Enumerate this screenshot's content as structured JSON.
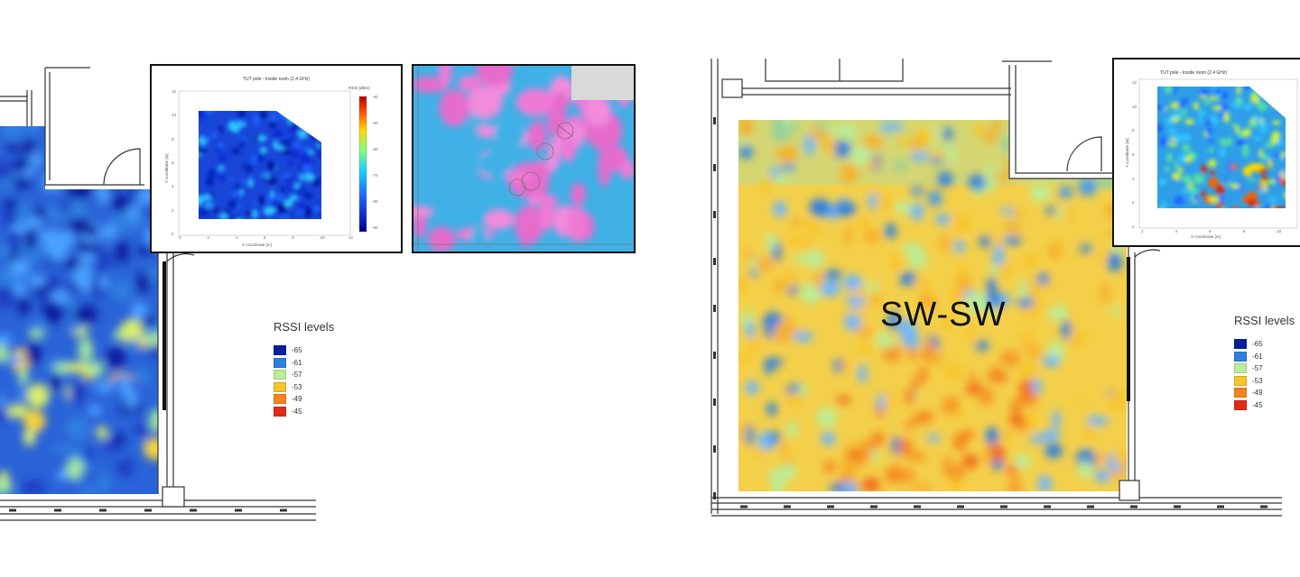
{
  "legend": {
    "title": "RSSI levels",
    "items": [
      {
        "label": "-65",
        "color": "#0a1f9e"
      },
      {
        "label": "-61",
        "color": "#2f7fe0"
      },
      {
        "label": "-57",
        "color": "#b9ee9a"
      },
      {
        "label": "-53",
        "color": "#f7c52a"
      },
      {
        "label": "-49",
        "color": "#f5841c"
      },
      {
        "label": "-45",
        "color": "#e32a18"
      }
    ]
  },
  "left_panel": {
    "inset_chart": {
      "title": "TUT pole - Inside room (2.4 GHz)",
      "xlabel": "X coordinate [m]",
      "ylabel": "Y coordinate [m]",
      "colorbar_label": "RSSI [dBm]",
      "x_ticks": [
        "0",
        "2",
        "4",
        "6",
        "8",
        "10",
        "12"
      ],
      "y_ticks": [
        "0",
        "2",
        "4",
        "6",
        "8",
        "10",
        "12"
      ],
      "colorbar_ticks": [
        "-40",
        "-50",
        "-60",
        "-70",
        "-80",
        "-90"
      ]
    },
    "heatmap_level": 0.2
  },
  "right_panel": {
    "overlay_label": "SW-SW",
    "inset_chart": {
      "title": "TUT pole - Inside room (2.4 GHz)",
      "xlabel": "X coordinate [m]",
      "ylabel": "Y coordinate [m]",
      "x_ticks": [
        "2",
        "4",
        "6",
        "8",
        "10"
      ],
      "y_ticks": [
        "0",
        "2",
        "4",
        "6",
        "8",
        "10",
        "12"
      ]
    },
    "heatmap_level": 0.62
  }
}
